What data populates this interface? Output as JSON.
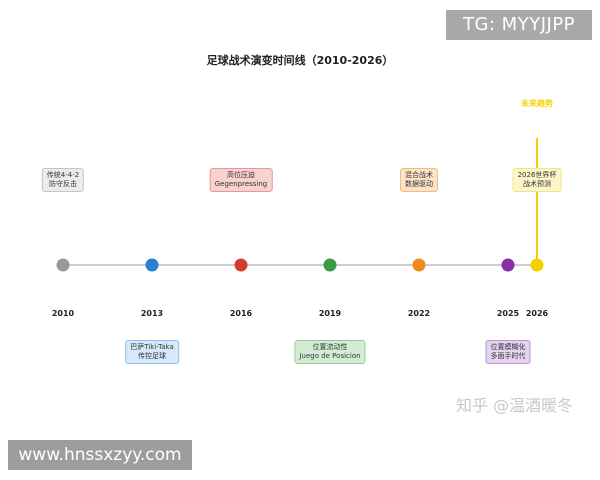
{
  "watermarks": {
    "tg": "TG: MYYJJPP",
    "site": "www.hnssxzyy.com",
    "zhihu": "知乎 @温酒暖冬"
  },
  "title": "足球战术演变时间线（2010-2026）",
  "future_label": "未来趋势",
  "events": [
    {
      "year": "2010",
      "line1": "传统4-4-2",
      "line2": "防守反击",
      "color": "#999999",
      "box_bg": "#ececec",
      "box_border": "#c4c4c4",
      "position": "above"
    },
    {
      "year": "2013",
      "line1": "巴萨Tiki-Taka",
      "line2": "传控足球",
      "color": "#2a7fd4",
      "box_bg": "#d6e8fa",
      "box_border": "#8fbfea",
      "position": "below"
    },
    {
      "year": "2016",
      "line1": "高位压迫",
      "line2": "Gegenpressing",
      "color": "#d63b32",
      "box_bg": "#f8d2cf",
      "box_border": "#e79994",
      "position": "above"
    },
    {
      "year": "2019",
      "line1": "位置流动性",
      "line2": "Juego de Posicion",
      "color": "#3d9a42",
      "box_bg": "#d4ecd3",
      "box_border": "#95cc93",
      "position": "below"
    },
    {
      "year": "2022",
      "line1": "混合战术",
      "line2": "数据驱动",
      "color": "#f08a1a",
      "box_bg": "#fce3c7",
      "box_border": "#f2bd83",
      "position": "above"
    },
    {
      "year": "2025",
      "line1": "位置模糊化",
      "line2": "多面手时代",
      "color": "#8a2ca8",
      "box_bg": "#e6d3ee",
      "box_border": "#bf93d3",
      "position": "below"
    },
    {
      "year": "2026",
      "line1": "2026世界杯",
      "line2": "战术预测",
      "color": "#f5d000",
      "box_bg": "#fdf6c8",
      "box_border": "#f0e38a",
      "position": "above"
    }
  ],
  "future_line_color": "#f5d000"
}
